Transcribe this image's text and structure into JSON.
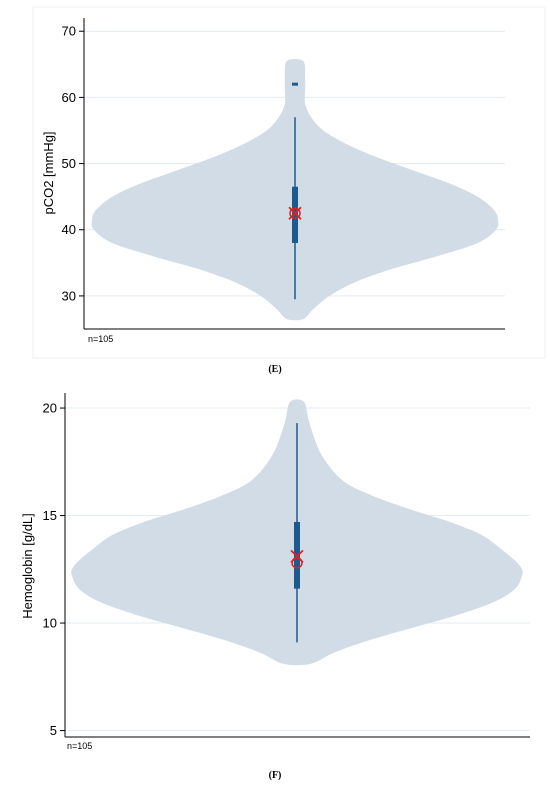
{
  "chart_data": [
    {
      "type": "violin",
      "panel": "(E)",
      "ylabel": "pCO2 [mmHg]",
      "ylim": [
        25,
        72
      ],
      "yticks": [
        30,
        40,
        50,
        60,
        70
      ],
      "note": "n=105",
      "grid": true,
      "colors": {
        "violin": "#d2dce6",
        "box": "#1f5a8e",
        "marker": "#e02020",
        "grid": "#e2ecf2"
      },
      "distribution": {
        "y": [
          26.5,
          28,
          30,
          32,
          34,
          36,
          38,
          40,
          41.5,
          43,
          45,
          47,
          49,
          51,
          53,
          55,
          57,
          59,
          61,
          63,
          65.5
        ],
        "density": [
          0.04,
          0.09,
          0.17,
          0.29,
          0.47,
          0.7,
          0.9,
          0.99,
          1.0,
          0.98,
          0.9,
          0.76,
          0.58,
          0.4,
          0.25,
          0.14,
          0.08,
          0.05,
          0.05,
          0.05,
          0.04
        ]
      },
      "summary": {
        "min": 29.5,
        "q1": 38,
        "median": 42.5,
        "mean": 42.5,
        "q3": 46.5,
        "max": 57,
        "outliers": [
          62
        ]
      }
    },
    {
      "type": "violin",
      "panel": "(F)",
      "ylabel": "Hemoglobin [g/dL]",
      "ylim": [
        4.7,
        20.7
      ],
      "yticks": [
        5,
        10,
        15,
        20
      ],
      "note": "n=105",
      "grid": true,
      "colors": {
        "violin": "#d2dce6",
        "box": "#1f5a8e",
        "marker": "#e02020",
        "grid": "#e2ecf2"
      },
      "distribution": {
        "y": [
          8.1,
          8.6,
          9.2,
          9.8,
          10.4,
          11.0,
          11.6,
          12.2,
          12.5,
          12.9,
          13.5,
          14.1,
          14.7,
          15.3,
          15.9,
          16.5,
          17.2,
          18.0,
          18.8,
          19.5,
          20.3
        ],
        "density": [
          0.06,
          0.16,
          0.32,
          0.52,
          0.72,
          0.88,
          0.97,
          1.0,
          1.0,
          0.97,
          0.9,
          0.82,
          0.68,
          0.5,
          0.34,
          0.22,
          0.15,
          0.1,
          0.07,
          0.05,
          0.03
        ]
      },
      "summary": {
        "min": 9.1,
        "q1": 11.6,
        "median": 12.8,
        "mean": 13.1,
        "q3": 14.7,
        "max": 19.3,
        "outliers": []
      }
    }
  ]
}
